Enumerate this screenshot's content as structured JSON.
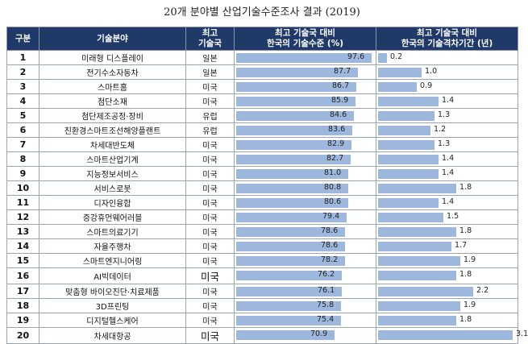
{
  "title": "20개 분야별 산업기술수준조사 결과 (2019)",
  "headers": {
    "rank": "구분",
    "field": "기술분야",
    "top_line1": "최고",
    "top_line2": "기술국",
    "level_line1": "최고 기술국 대비",
    "level_line2": "한국의 기술수준 (%)",
    "gap_line1": "최고 기술국 대비",
    "gap_line2": "한국의 기술격차기간 (년)"
  },
  "chart_data": {
    "type": "table",
    "columns": [
      "구분",
      "기술분야",
      "최고 기술국",
      "최고 기술국 대비 한국의 기술수준 (%)",
      "최고 기술국 대비 한국의 기술격차기간 (년)"
    ],
    "level_max": 100,
    "gap_max": 3.2,
    "bar_color": "#9db7dd",
    "header_color": "#1f3a68",
    "rows": [
      {
        "rank": "1",
        "field": "미래형 디스플레이",
        "top": "일본",
        "level": 97.6,
        "level_label": "97.6",
        "gap": 0.2,
        "gap_label": "0.2",
        "big": false
      },
      {
        "rank": "2",
        "field": "전기수소자동차",
        "top": "일본",
        "level": 87.7,
        "level_label": "87.7",
        "gap": 1.0,
        "gap_label": "1.0",
        "big": false
      },
      {
        "rank": "3",
        "field": "스마트홈",
        "top": "미국",
        "level": 86.7,
        "level_label": "86.7",
        "gap": 0.9,
        "gap_label": "0.9",
        "big": false
      },
      {
        "rank": "4",
        "field": "첨단소재",
        "top": "미국",
        "level": 85.9,
        "level_label": "85.9",
        "gap": 1.4,
        "gap_label": "1.4",
        "big": false
      },
      {
        "rank": "5",
        "field": "첨단제조공정·장비",
        "top": "유럽",
        "level": 84.6,
        "level_label": "84.6",
        "gap": 1.3,
        "gap_label": "1.3",
        "big": false
      },
      {
        "rank": "6",
        "field": "친환경스마트조선해양플랜트",
        "top": "유럽",
        "level": 83.6,
        "level_label": "83.6",
        "gap": 1.2,
        "gap_label": "1.2",
        "big": false
      },
      {
        "rank": "7",
        "field": "차세대반도체",
        "top": "미국",
        "level": 82.9,
        "level_label": "82.9",
        "gap": 1.3,
        "gap_label": "1.3",
        "big": false
      },
      {
        "rank": "8",
        "field": "스마트산업기계",
        "top": "미국",
        "level": 82.7,
        "level_label": "82.7",
        "gap": 1.4,
        "gap_label": "1.4",
        "big": false
      },
      {
        "rank": "9",
        "field": "지능정보서비스",
        "top": "미국",
        "level": 81.0,
        "level_label": "81.0",
        "gap": 1.4,
        "gap_label": "1.4",
        "big": false
      },
      {
        "rank": "10",
        "field": "서비스로봇",
        "top": "미국",
        "level": 80.8,
        "level_label": "80.8",
        "gap": 1.8,
        "gap_label": "1.8",
        "big": false
      },
      {
        "rank": "11",
        "field": "디자인융합",
        "top": "미국",
        "level": 80.6,
        "level_label": "80.6",
        "gap": 1.4,
        "gap_label": "1.4",
        "big": false
      },
      {
        "rank": "12",
        "field": "증강휴먼웨어러블",
        "top": "미국",
        "level": 79.4,
        "level_label": "79.4",
        "gap": 1.5,
        "gap_label": "1.5",
        "big": false
      },
      {
        "rank": "13",
        "field": "스마트의료기기",
        "top": "미국",
        "level": 78.6,
        "level_label": "78.6",
        "gap": 1.8,
        "gap_label": "1.8",
        "big": false
      },
      {
        "rank": "14",
        "field": "자율주행차",
        "top": "미국",
        "level": 78.6,
        "level_label": "78.6",
        "gap": 1.7,
        "gap_label": "1.7",
        "big": false
      },
      {
        "rank": "15",
        "field": "스마트엔지니어링",
        "top": "미국",
        "level": 78.2,
        "level_label": "78.2",
        "gap": 1.9,
        "gap_label": "1.9",
        "big": false
      },
      {
        "rank": "16",
        "field": "AI빅데이터",
        "top": "미국",
        "level": 76.2,
        "level_label": "76.2",
        "gap": 1.8,
        "gap_label": "1.8",
        "big": true
      },
      {
        "rank": "17",
        "field": "맞춤형 바이오진단·치료제품",
        "top": "미국",
        "level": 76.1,
        "level_label": "76.1",
        "gap": 2.2,
        "gap_label": "2.2",
        "big": false
      },
      {
        "rank": "18",
        "field": "3D프린팅",
        "top": "미국",
        "level": 75.8,
        "level_label": "75.8",
        "gap": 1.9,
        "gap_label": "1.9",
        "big": false
      },
      {
        "rank": "19",
        "field": "디지털헬스케어",
        "top": "미국",
        "level": 75.4,
        "level_label": "75.4",
        "gap": 1.8,
        "gap_label": "1.8",
        "big": false
      },
      {
        "rank": "20",
        "field": "차세대항공",
        "top": "미국",
        "level": 70.9,
        "level_label": "70.9",
        "gap": 3.1,
        "gap_label": "3.1",
        "big": true
      }
    ]
  }
}
